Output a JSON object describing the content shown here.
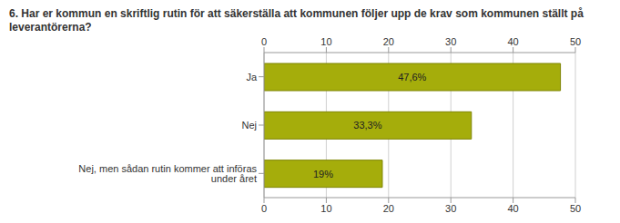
{
  "chart_data": {
    "type": "bar",
    "title": "6. Har er kommun en skriftlig rutin för att säkerställa att kommunen följer upp de krav som kommunen ställt på leverantörerna?",
    "orientation": "horizontal",
    "categories": [
      "Ja",
      "Nej",
      "Nej, men sådan rutin kommer att införas under året"
    ],
    "values": [
      47.6,
      33.3,
      19
    ],
    "value_labels": [
      "47,6%",
      "33,3%",
      "19%"
    ],
    "data_labels": true,
    "color": "#a5ad0b",
    "xlim": [
      0,
      50
    ],
    "xticks": [
      0,
      10,
      20,
      30,
      40,
      50
    ],
    "grid": true
  }
}
